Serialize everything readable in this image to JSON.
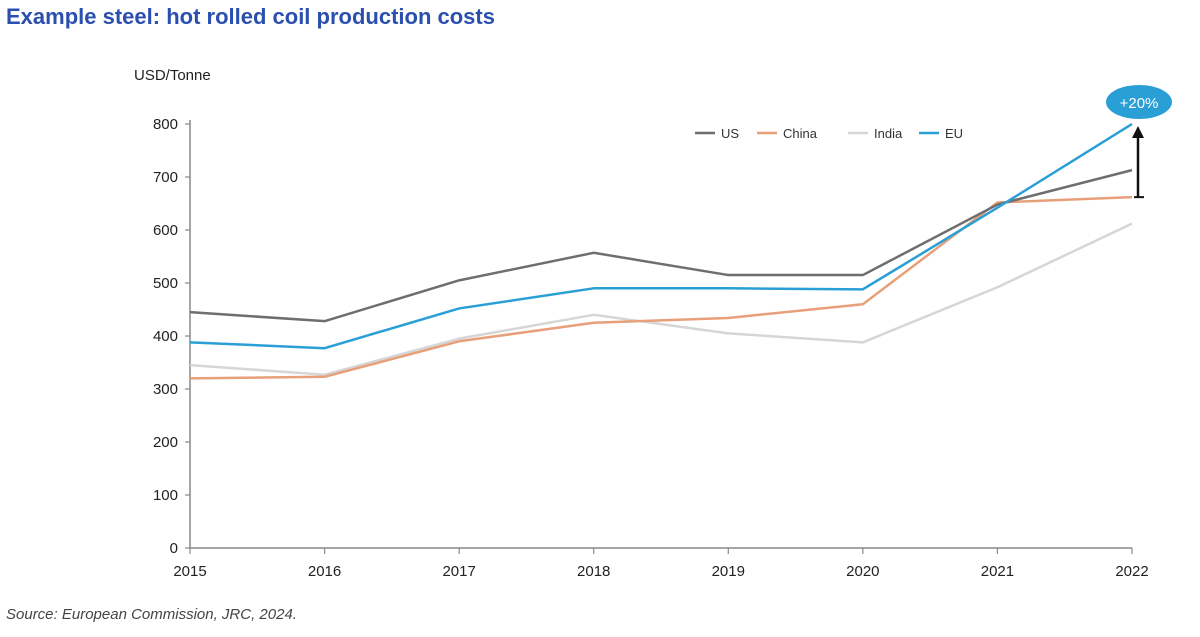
{
  "title": "Example steel: hot rolled coil production costs",
  "source": "Source: European Commission, JRC, 2024.",
  "chart_data": {
    "type": "line",
    "ylabel": "USD/Tonne",
    "xlabel": "",
    "x": [
      "2015",
      "2016",
      "2017",
      "2018",
      "2019",
      "2020",
      "2021",
      "2022"
    ],
    "ylim": [
      0,
      800
    ],
    "yticks": [
      0,
      100,
      200,
      300,
      400,
      500,
      600,
      700,
      800
    ],
    "grid": false,
    "legend_position": "top-right",
    "series": [
      {
        "name": "US",
        "color": "#6e6e6e",
        "values": [
          445,
          428,
          505,
          557,
          515,
          515,
          648,
          713
        ]
      },
      {
        "name": "China",
        "color": "#e8a07a",
        "values": [
          320,
          323,
          390,
          425,
          434,
          460,
          652,
          662
        ]
      },
      {
        "name": "India",
        "color": "#d6d6d6",
        "values": [
          345,
          327,
          395,
          440,
          405,
          388,
          492,
          612
        ]
      },
      {
        "name": "EU",
        "color": "#2a9fd6",
        "values": [
          388,
          377,
          452,
          490,
          490,
          488,
          642,
          800
        ]
      }
    ],
    "annotation": {
      "text": "+20%",
      "color": "#2a9fd6"
    }
  }
}
